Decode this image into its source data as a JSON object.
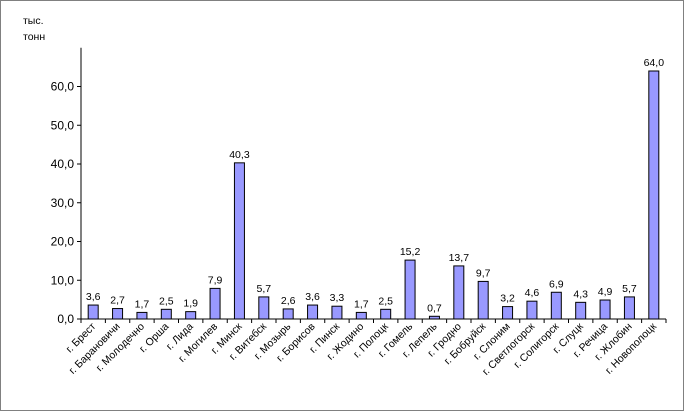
{
  "chart_data": {
    "type": "bar",
    "title": "",
    "xlabel": "",
    "ylabel_line1": "тыс.",
    "ylabel_line2": "тонн",
    "ylim": [
      0,
      70
    ],
    "yticks": [
      "0,0",
      "10,0",
      "20,0",
      "30,0",
      "40,0",
      "50,0",
      "60,0"
    ],
    "grid": false,
    "legend": "none",
    "bar_color": "#9999ff",
    "bar_border": "#000000",
    "categories": [
      "г. Брест",
      "г. Барановичи",
      "г. Молодечно",
      "г. Орша",
      "г. Лида",
      "г. Могилев",
      "г. Минск",
      "г. Витебск",
      "г. Мозырь",
      "г. Борисов",
      "г. Пинск",
      "г. Жодино",
      "г. Полоцк",
      "г. Гомель",
      "г. Лепель",
      "г. Гродно",
      "г. Бобруйск",
      "г. Слоним",
      "г. Светлогорск",
      "г. Солигорск",
      "г. Слуцк",
      "г. Речица",
      "г. Жлобин",
      "г. Новополоцк"
    ],
    "values": [
      3.6,
      2.7,
      1.7,
      2.5,
      1.9,
      7.9,
      40.3,
      5.7,
      2.6,
      3.6,
      3.3,
      1.7,
      2.5,
      15.2,
      0.7,
      13.7,
      9.7,
      3.2,
      4.6,
      6.9,
      4.3,
      4.9,
      5.7,
      64.0
    ],
    "labels": [
      "3,6",
      "2,7",
      "1,7",
      "2,5",
      "1,9",
      "7,9",
      "40,3",
      "5,7",
      "2,6",
      "3,6",
      "3,3",
      "1,7",
      "2,5",
      "15,2",
      "0,7",
      "13,7",
      "9,7",
      "3,2",
      "4,6",
      "6,9",
      "4,3",
      "4,9",
      "5,7",
      "64,0"
    ]
  }
}
